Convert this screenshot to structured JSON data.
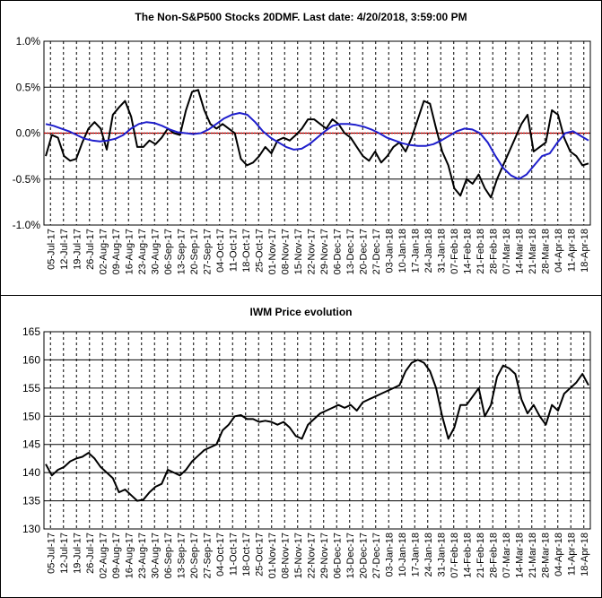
{
  "chart_data": [
    {
      "type": "line",
      "title": "The Non-S&P500 Stocks 20DMF. Last date: 4/20/2018, 3:59:00 PM",
      "ylim": [
        -1.0,
        1.0
      ],
      "y_ticks": [
        "1.0%",
        "0.5%",
        "0.0%",
        "-0.5%",
        "-1.0%"
      ],
      "grid": "horizontal solid, vertical dashed weekly",
      "legend": "none",
      "x_tick_labels": [
        "05-Jul-17",
        "12-Jul-17",
        "19-Jul-17",
        "26-Jul-17",
        "02-Aug-17",
        "09-Aug-17",
        "16-Aug-17",
        "23-Aug-17",
        "30-Aug-17",
        "06-Sep-17",
        "13-Sep-17",
        "20-Sep-17",
        "27-Sep-17",
        "04-Oct-17",
        "11-Oct-17",
        "18-Oct-17",
        "25-Oct-17",
        "01-Nov-17",
        "08-Nov-17",
        "15-Nov-17",
        "22-Nov-17",
        "29-Nov-17",
        "06-Dec-17",
        "13-Dec-17",
        "20-Dec-17",
        "27-Dec-17",
        "03-Jan-18",
        "10-Jan-18",
        "17-Jan-18",
        "24-Jan-18",
        "31-Jan-18",
        "07-Feb-18",
        "14-Feb-18",
        "21-Feb-18",
        "28-Feb-18",
        "07-Mar-18",
        "14-Mar-18",
        "21-Mar-18",
        "28-Mar-18",
        "04-Apr-18",
        "11-Apr-18",
        "18-Apr-18"
      ],
      "series": [
        {
          "color": "#000000",
          "values": [
            -0.25,
            -0.02,
            -0.05,
            -0.25,
            -0.3,
            -0.28,
            -0.1,
            0.05,
            0.12,
            0.05,
            -0.18,
            0.2,
            0.28,
            0.35,
            0.18,
            -0.15,
            -0.15,
            -0.08,
            -0.12,
            -0.05,
            0.05,
            0.0,
            -0.02,
            0.25,
            0.45,
            0.47,
            0.25,
            0.1,
            0.05,
            0.1,
            0.05,
            0.0,
            -0.28,
            -0.35,
            -0.32,
            -0.25,
            -0.15,
            -0.22,
            -0.08,
            -0.05,
            -0.08,
            -0.02,
            0.05,
            0.15,
            0.15,
            0.1,
            0.05,
            0.15,
            0.1,
            0.0,
            -0.05,
            -0.15,
            -0.25,
            -0.3,
            -0.2,
            -0.32,
            -0.25,
            -0.15,
            -0.1,
            -0.2,
            -0.05,
            0.15,
            0.35,
            0.32,
            0.05,
            -0.2,
            -0.35,
            -0.6,
            -0.68,
            -0.5,
            -0.55,
            -0.45,
            -0.6,
            -0.7,
            -0.5,
            -0.35,
            -0.2,
            -0.05,
            0.1,
            0.2,
            -0.2,
            -0.15,
            -0.1,
            0.25,
            0.2,
            -0.05,
            -0.2,
            -0.25,
            -0.35,
            -0.33
          ]
        },
        {
          "color": "#1f1fcc",
          "values": [
            0.1,
            0.08,
            0.05,
            0.02,
            -0.02,
            -0.06,
            -0.08,
            -0.09,
            -0.08,
            -0.06,
            -0.02,
            0.05,
            0.1,
            0.12,
            0.11,
            0.08,
            0.04,
            0.01,
            0.0,
            -0.01,
            0.0,
            0.04,
            0.1,
            0.16,
            0.2,
            0.22,
            0.2,
            0.12,
            0.02,
            -0.05,
            -0.1,
            -0.15,
            -0.18,
            -0.17,
            -0.12,
            -0.05,
            0.02,
            0.08,
            0.1,
            0.1,
            0.09,
            0.07,
            0.04,
            0.0,
            -0.05,
            -0.08,
            -0.11,
            -0.13,
            -0.14,
            -0.14,
            -0.12,
            -0.08,
            -0.03,
            0.02,
            0.05,
            0.04,
            0.0,
            -0.1,
            -0.25,
            -0.38,
            -0.46,
            -0.5,
            -0.45,
            -0.35,
            -0.25,
            -0.22,
            -0.1,
            0.0,
            0.02,
            -0.03,
            -0.08
          ]
        }
      ],
      "zero_line": {
        "color": "#cc0000",
        "value": 0.0
      }
    },
    {
      "type": "line",
      "title": "IWM Price evolution",
      "ylim": [
        130,
        165
      ],
      "y_ticks": [
        "165",
        "160",
        "155",
        "150",
        "145",
        "140",
        "135",
        "130"
      ],
      "grid": "horizontal solid, vertical dashed weekly",
      "legend": "none",
      "x_tick_labels": [
        "05-Jul-17",
        "12-Jul-17",
        "19-Jul-17",
        "26-Jul-17",
        "02-Aug-17",
        "09-Aug-17",
        "16-Aug-17",
        "23-Aug-17",
        "30-Aug-17",
        "06-Sep-17",
        "13-Sep-17",
        "20-Sep-17",
        "27-Sep-17",
        "04-Oct-17",
        "11-Oct-17",
        "18-Oct-17",
        "25-Oct-17",
        "01-Nov-17",
        "08-Nov-17",
        "15-Nov-17",
        "22-Nov-17",
        "29-Nov-17",
        "06-Dec-17",
        "13-Dec-17",
        "20-Dec-17",
        "27-Dec-17",
        "03-Jan-18",
        "10-Jan-18",
        "17-Jan-18",
        "24-Jan-18",
        "31-Jan-18",
        "07-Feb-18",
        "14-Feb-18",
        "21-Feb-18",
        "28-Feb-18",
        "07-Mar-18",
        "14-Mar-18",
        "21-Mar-18",
        "28-Mar-18",
        "04-Apr-18",
        "11-Apr-18",
        "18-Apr-18"
      ],
      "series": [
        {
          "color": "#000000",
          "values": [
            141.5,
            139.5,
            140.5,
            141.0,
            142.0,
            142.5,
            142.8,
            143.5,
            142.5,
            141.0,
            140.0,
            139.0,
            136.5,
            137.0,
            136.0,
            135.0,
            135.2,
            136.5,
            137.5,
            138.0,
            140.5,
            140.0,
            139.5,
            140.5,
            142.0,
            143.0,
            144.0,
            144.5,
            145.0,
            147.5,
            148.5,
            150.0,
            150.2,
            149.5,
            149.5,
            149.0,
            149.2,
            149.0,
            148.5,
            149.0,
            148.0,
            146.5,
            146.0,
            148.5,
            149.5,
            150.5,
            151.0,
            151.5,
            152.0,
            151.5,
            152.0,
            151.0,
            152.5,
            153.0,
            153.5,
            154.0,
            154.5,
            155.0,
            155.5,
            158.0,
            159.5,
            160.0,
            159.5,
            158.0,
            155.0,
            150.0,
            146.0,
            148.0,
            152.0,
            152.0,
            153.5,
            155.0,
            150.0,
            152.0,
            157.0,
            159.0,
            158.5,
            157.5,
            153.0,
            150.5,
            152.0,
            150.0,
            148.5,
            152.0,
            151.0,
            154.0,
            155.0,
            156.0,
            157.5,
            155.5
          ]
        }
      ]
    }
  ]
}
